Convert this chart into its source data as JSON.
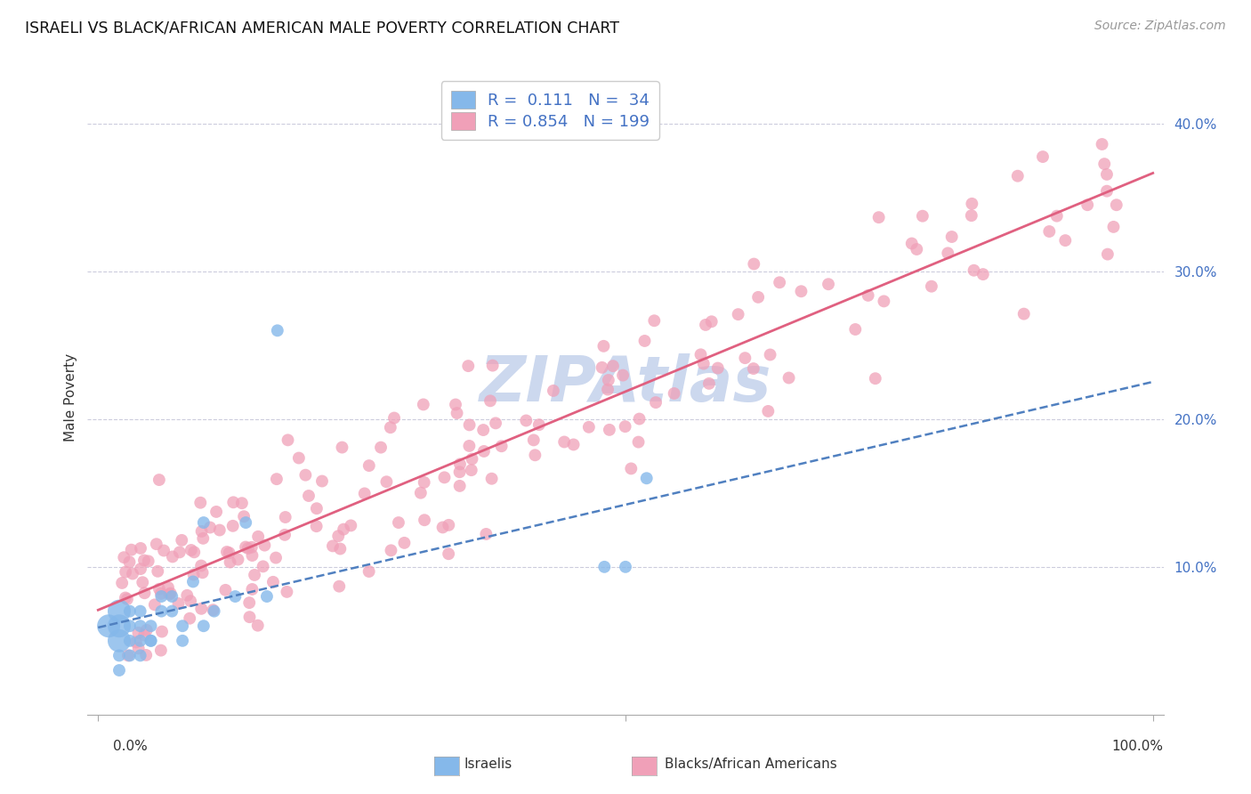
{
  "title": "ISRAELI VS BLACK/AFRICAN AMERICAN MALE POVERTY CORRELATION CHART",
  "source": "Source: ZipAtlas.com",
  "ylabel": "Male Poverty",
  "color_israeli": "#85b8ea",
  "color_black": "#f0a0b8",
  "color_israeli_line": "#5080c0",
  "color_black_line": "#e06080",
  "color_text_blue": "#4472c4",
  "color_grid": "#ccccdd",
  "background_color": "#ffffff",
  "watermark_text": "ZIPAtlas",
  "watermark_color": "#ccd8ee",
  "legend_label1": "R =  0.111   N =  34",
  "legend_label2": "R = 0.854   N = 199"
}
